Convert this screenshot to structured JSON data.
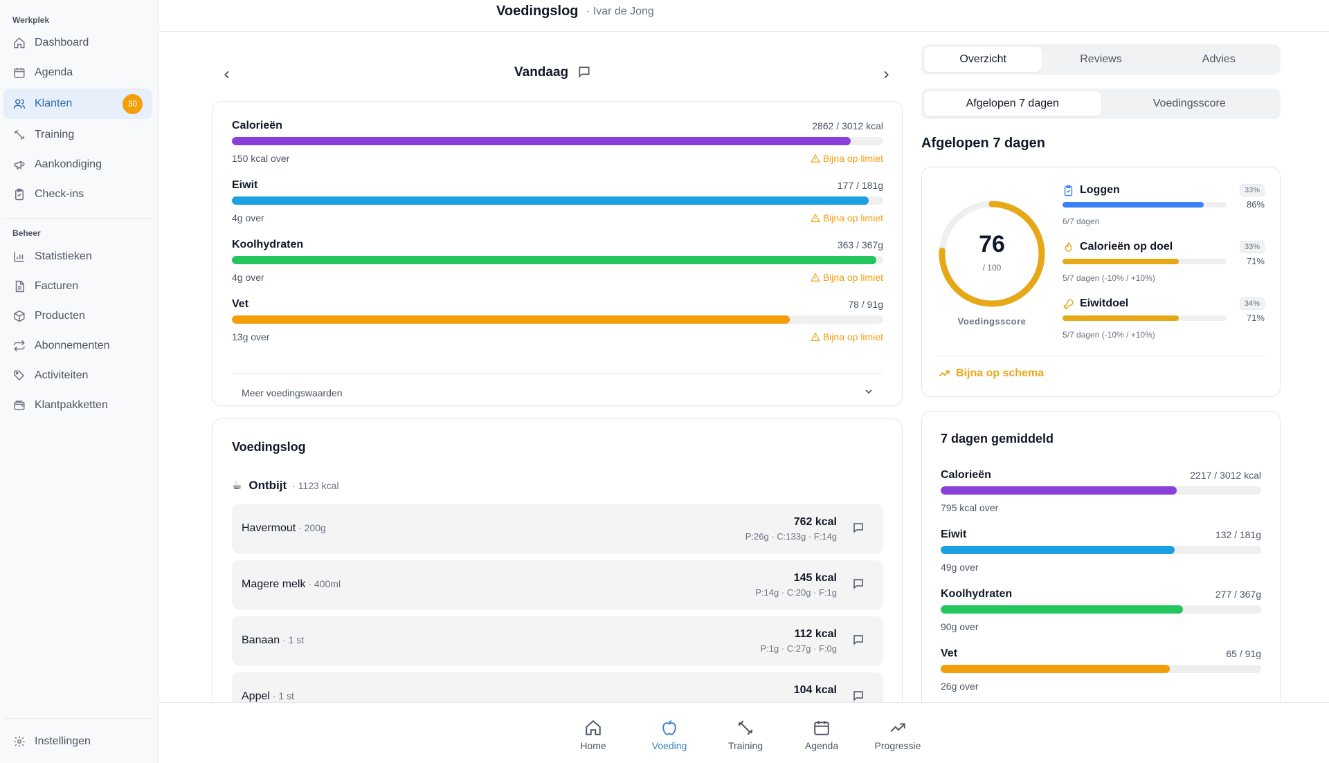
{
  "sidebar": {
    "section_workspace": "Werkplek",
    "section_manage": "Beheer",
    "items": [
      {
        "label": "Dashboard",
        "icon": "home-icon"
      },
      {
        "label": "Agenda",
        "icon": "calendar-icon"
      },
      {
        "label": "Klanten",
        "icon": "users-icon",
        "badge": "30",
        "active": true
      },
      {
        "label": "Training",
        "icon": "dumbbell-icon"
      },
      {
        "label": "Aankondiging",
        "icon": "megaphone-icon"
      },
      {
        "label": "Check-ins",
        "icon": "clipboard-icon"
      }
    ],
    "manage_items": [
      {
        "label": "Statistieken",
        "icon": "bar-chart-icon"
      },
      {
        "label": "Facturen",
        "icon": "document-icon"
      },
      {
        "label": "Producten",
        "icon": "package-icon"
      },
      {
        "label": "Abonnementen",
        "icon": "repeat-icon"
      },
      {
        "label": "Activiteiten",
        "icon": "tag-icon"
      },
      {
        "label": "Klantpakketten",
        "icon": "wallet-icon"
      }
    ],
    "settings_label": "Instellingen"
  },
  "header": {
    "title": "Voedingslog",
    "subtitle": "· Ivar de Jong"
  },
  "day_nav": {
    "title": "Vandaag"
  },
  "today": {
    "macros": [
      {
        "name": "Calorieën",
        "value": "2862 / 3012 kcal",
        "over": "150 kcal over",
        "warning": "Bijna op limiet",
        "fill": 0.95,
        "color": "#8b3fd9"
      },
      {
        "name": "Eiwit",
        "value": "177 / 181g",
        "over": "4g over",
        "warning": "Bijna op limiet",
        "fill": 0.978,
        "color": "#1ba1e2"
      },
      {
        "name": "Koolhydraten",
        "value": "363 / 367g",
        "over": "4g over",
        "warning": "Bijna op limiet",
        "fill": 0.989,
        "color": "#22c55e"
      },
      {
        "name": "Vet",
        "value": "78 / 91g",
        "over": "13g over",
        "warning": "Bijna op limiet",
        "fill": 0.857,
        "color": "#f59e0b"
      }
    ],
    "more_label": "Meer voedingswaarden"
  },
  "log": {
    "title": "Voedingslog",
    "meal": {
      "emoji": "☕",
      "name": "Ontbijt",
      "kcal": "· 1123 kcal"
    },
    "foods": [
      {
        "name": "Havermout",
        "amount": " · 200g",
        "kcal": "762 kcal",
        "macros": "P:26g · C:133g · F:14g"
      },
      {
        "name": "Magere melk",
        "amount": " · 400ml",
        "kcal": "145 kcal",
        "macros": "P:14g · C:20g · F:1g"
      },
      {
        "name": "Banaan",
        "amount": " · 1 st",
        "kcal": "112 kcal",
        "macros": "P:1g · C:27g · F:0g"
      },
      {
        "name": "Appel",
        "amount": " · 1 st",
        "kcal": "104 kcal",
        "macros": ""
      }
    ]
  },
  "right": {
    "tabs": [
      "Overzicht",
      "Reviews",
      "Advies"
    ],
    "active_tab": "Overzicht",
    "subtabs": [
      "Afgelopen 7 dagen",
      "Voedingsscore"
    ],
    "active_subtab": "Afgelopen 7 dagen",
    "section_title": "Afgelopen 7 dagen",
    "score": {
      "value": "76",
      "max": "/ 100",
      "label": "Voedingsscore",
      "fraction": 0.76,
      "color": "#e6a817"
    },
    "metrics": [
      {
        "name": "Loggen",
        "icon": "clipboard-icon",
        "weight": "33%",
        "percent": "86%",
        "fill": 0.86,
        "color": "#3b82f6",
        "sub": "6/7 dagen"
      },
      {
        "name": "Calorieën op doel",
        "icon": "flame-icon",
        "weight": "33%",
        "percent": "71%",
        "fill": 0.71,
        "color": "#e6a817",
        "sub": "5/7 dagen (-10% / +10%)"
      },
      {
        "name": "Eiwitdoel",
        "icon": "drumstick-icon",
        "weight": "34%",
        "percent": "71%",
        "fill": 0.71,
        "color": "#e6a817",
        "sub": "5/7 dagen (-10% / +10%)"
      }
    ],
    "status": "Bijna op schema",
    "avg_title": "7 dagen gemiddeld",
    "averages": [
      {
        "name": "Calorieën",
        "value": "2217 / 3012 kcal",
        "over": "795 kcal over",
        "fill": 0.736,
        "color": "#8b3fd9"
      },
      {
        "name": "Eiwit",
        "value": "132 / 181g",
        "over": "49g over",
        "fill": 0.729,
        "color": "#1ba1e2"
      },
      {
        "name": "Koolhydraten",
        "value": "277 / 367g",
        "over": "90g over",
        "fill": 0.755,
        "color": "#22c55e"
      },
      {
        "name": "Vet",
        "value": "65 / 91g",
        "over": "26g over",
        "fill": 0.714,
        "color": "#f59e0b"
      }
    ]
  },
  "bottom_nav": [
    {
      "label": "Home",
      "icon": "home-icon"
    },
    {
      "label": "Voeding",
      "icon": "apple-icon",
      "active": true
    },
    {
      "label": "Training",
      "icon": "dumbbell-icon"
    },
    {
      "label": "Agenda",
      "icon": "calendar-icon"
    },
    {
      "label": "Progressie",
      "icon": "trending-up-icon"
    }
  ]
}
